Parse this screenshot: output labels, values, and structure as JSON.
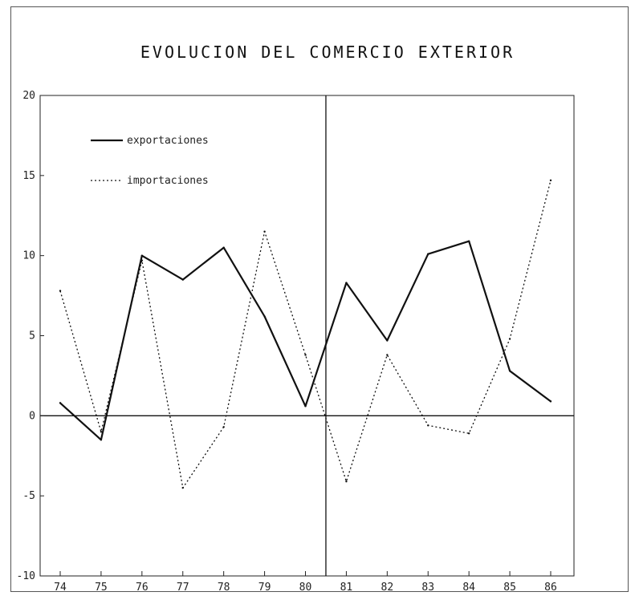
{
  "chart_data": {
    "type": "line",
    "title": "EVOLUCION DEL COMERCIO EXTERIOR",
    "x": [
      "74",
      "75",
      "76",
      "77",
      "78",
      "79",
      "80",
      "81",
      "82",
      "83",
      "84",
      "85",
      "86"
    ],
    "ylim": [
      -10,
      20
    ],
    "yticks": [
      20,
      15,
      10,
      5,
      0,
      -5,
      -10
    ],
    "series": [
      {
        "name": "exportaciones",
        "style": "solid",
        "values": [
          0.8,
          -1.5,
          10,
          8.5,
          10.5,
          6.2,
          0.6,
          8.3,
          4.7,
          10.1,
          10.9,
          2.8,
          0.9
        ]
      },
      {
        "name": "importaciones",
        "style": "dotted",
        "values": [
          7.8,
          -1.0,
          9.7,
          -4.5,
          -0.7,
          11.5,
          3.8,
          -4.1,
          3.8,
          -0.6,
          -1.1,
          4.8,
          14.7
        ]
      }
    ],
    "reference_lines": {
      "y": 0,
      "x_between": [
        "80",
        "81"
      ]
    },
    "legend_position": "top-left",
    "grid": false
  }
}
